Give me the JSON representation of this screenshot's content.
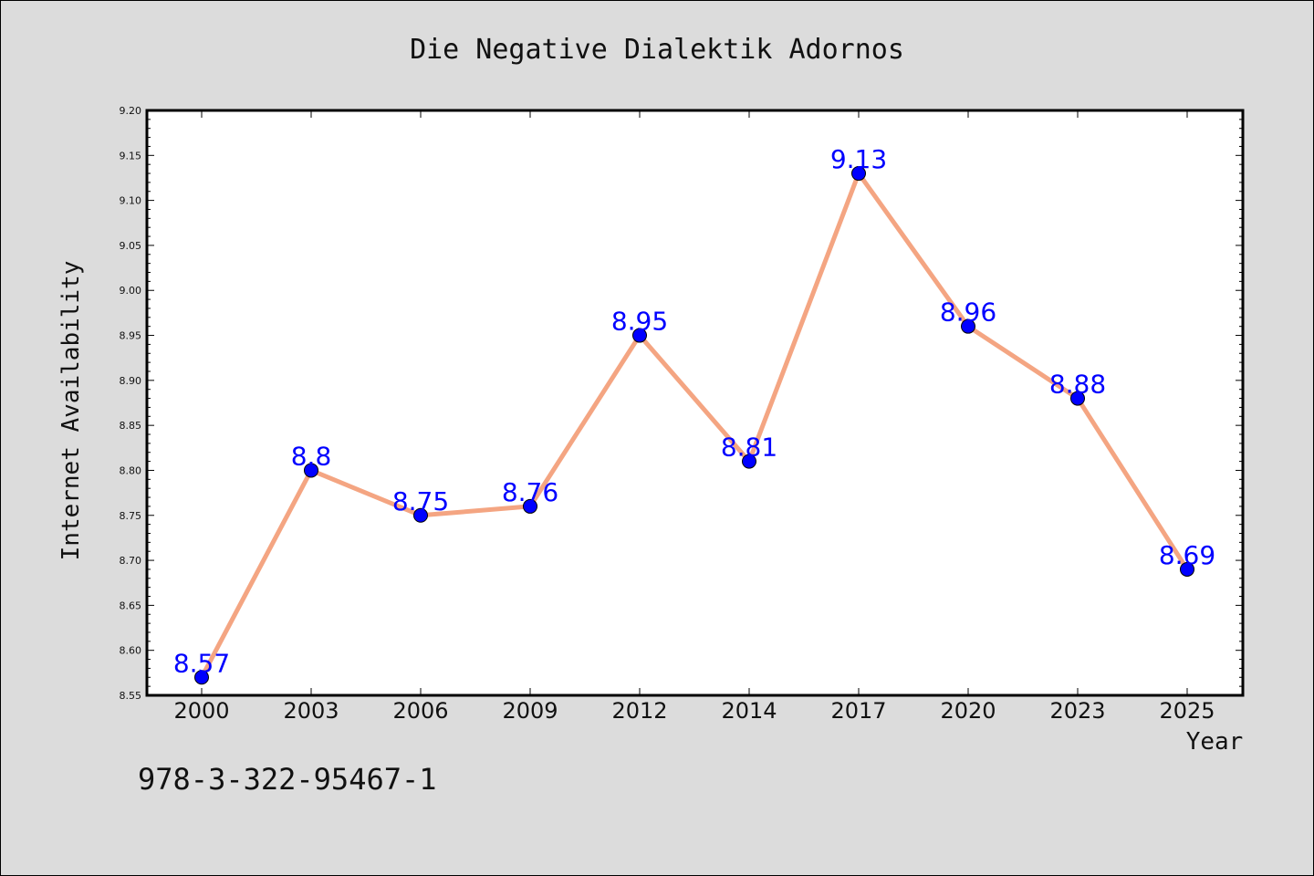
{
  "chart_data": {
    "type": "line",
    "title": "Die Negative Dialektik Adornos",
    "xlabel": "Year",
    "ylabel": "Internet Availability",
    "categories": [
      "2000",
      "2003",
      "2006",
      "2009",
      "2012",
      "2014",
      "2017",
      "2020",
      "2023",
      "2025"
    ],
    "series": [
      {
        "values": [
          8.57,
          8.8,
          8.75,
          8.76,
          8.95,
          8.81,
          9.13,
          8.96,
          8.88,
          8.69
        ],
        "labels": [
          "8.57",
          "8.8",
          "8.75",
          "8.76",
          "8.95",
          "8.81",
          "9.13",
          "8.96",
          "8.88",
          "8.69"
        ],
        "line_color": "#f4a582",
        "marker_color": "#0000ff"
      }
    ],
    "ylim": [
      8.55,
      9.2
    ],
    "yticks": [
      "8.55",
      "8.60",
      "8.65",
      "8.70",
      "8.75",
      "8.80",
      "8.85",
      "8.90",
      "8.95",
      "9.00",
      "9.05",
      "9.10",
      "9.15",
      "9.20"
    ],
    "grid": false,
    "legend": "none"
  },
  "footer": {
    "isbn": "978-3-322-95467-1"
  },
  "colors": {
    "background": "#dcdcdc",
    "plot_background": "#ffffff",
    "data_label": "#0000ff"
  }
}
